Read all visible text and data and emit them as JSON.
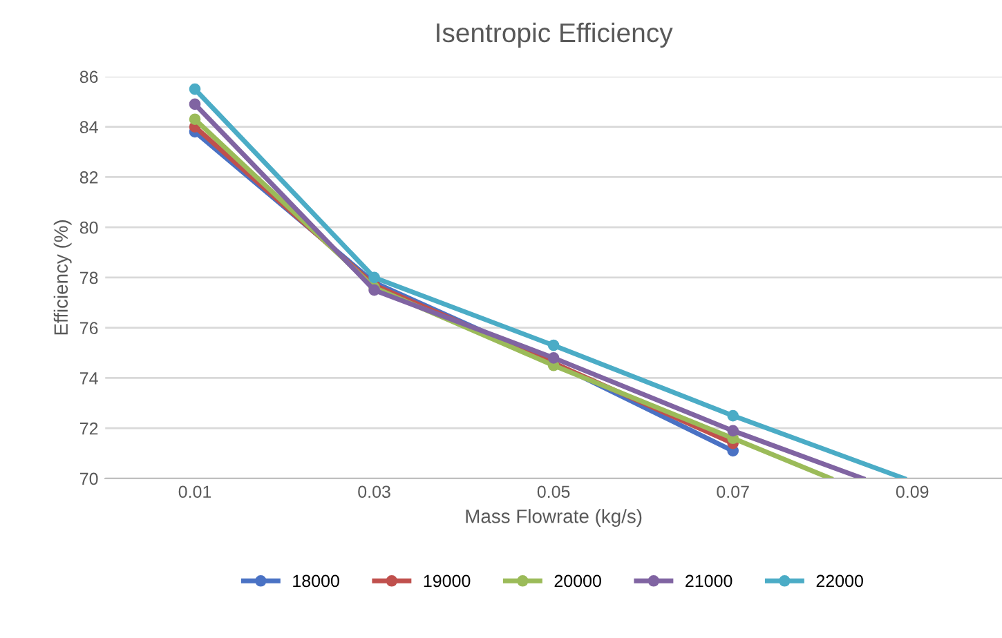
{
  "chart_data": {
    "type": "line",
    "title": "Isentropic Efficiency",
    "xlabel": "Mass Flowrate (kg/s)",
    "ylabel": "Efficiency (%)",
    "xlim": [
      0,
      0.1
    ],
    "xticks": [
      0.01,
      0.03,
      0.05,
      0.07,
      0.09
    ],
    "ylim": [
      70,
      86
    ],
    "yticks": [
      70,
      72,
      74,
      76,
      78,
      80,
      82,
      84,
      86
    ],
    "grid": "y",
    "legend": "bottom",
    "marker": "circle",
    "line_style": "solid",
    "series": [
      {
        "name": "18000",
        "color": "#4a72c4",
        "x": [
          0.01,
          0.03,
          0.05,
          0.07
        ],
        "values": [
          83.8,
          77.8,
          74.6,
          71.1
        ]
      },
      {
        "name": "19000",
        "color": "#c0504d",
        "x": [
          0.01,
          0.03,
          0.05,
          0.07
        ],
        "values": [
          84.0,
          77.7,
          74.6,
          71.4
        ]
      },
      {
        "name": "20000",
        "color": "#9bbb59",
        "x": [
          0.01,
          0.03,
          0.05,
          0.07,
          0.0809
        ],
        "values": [
          84.3,
          77.6,
          74.5,
          71.6,
          70
        ]
      },
      {
        "name": "21000",
        "color": "#8064a2",
        "x": [
          0.01,
          0.03,
          0.05,
          0.07,
          0.0845
        ],
        "values": [
          84.9,
          77.5,
          74.8,
          71.9,
          70
        ]
      },
      {
        "name": "22000",
        "color": "#4bacc6",
        "x": [
          0.01,
          0.03,
          0.05,
          0.07,
          0.0891
        ],
        "values": [
          85.5,
          78.0,
          75.3,
          72.5,
          70
        ]
      }
    ]
  }
}
